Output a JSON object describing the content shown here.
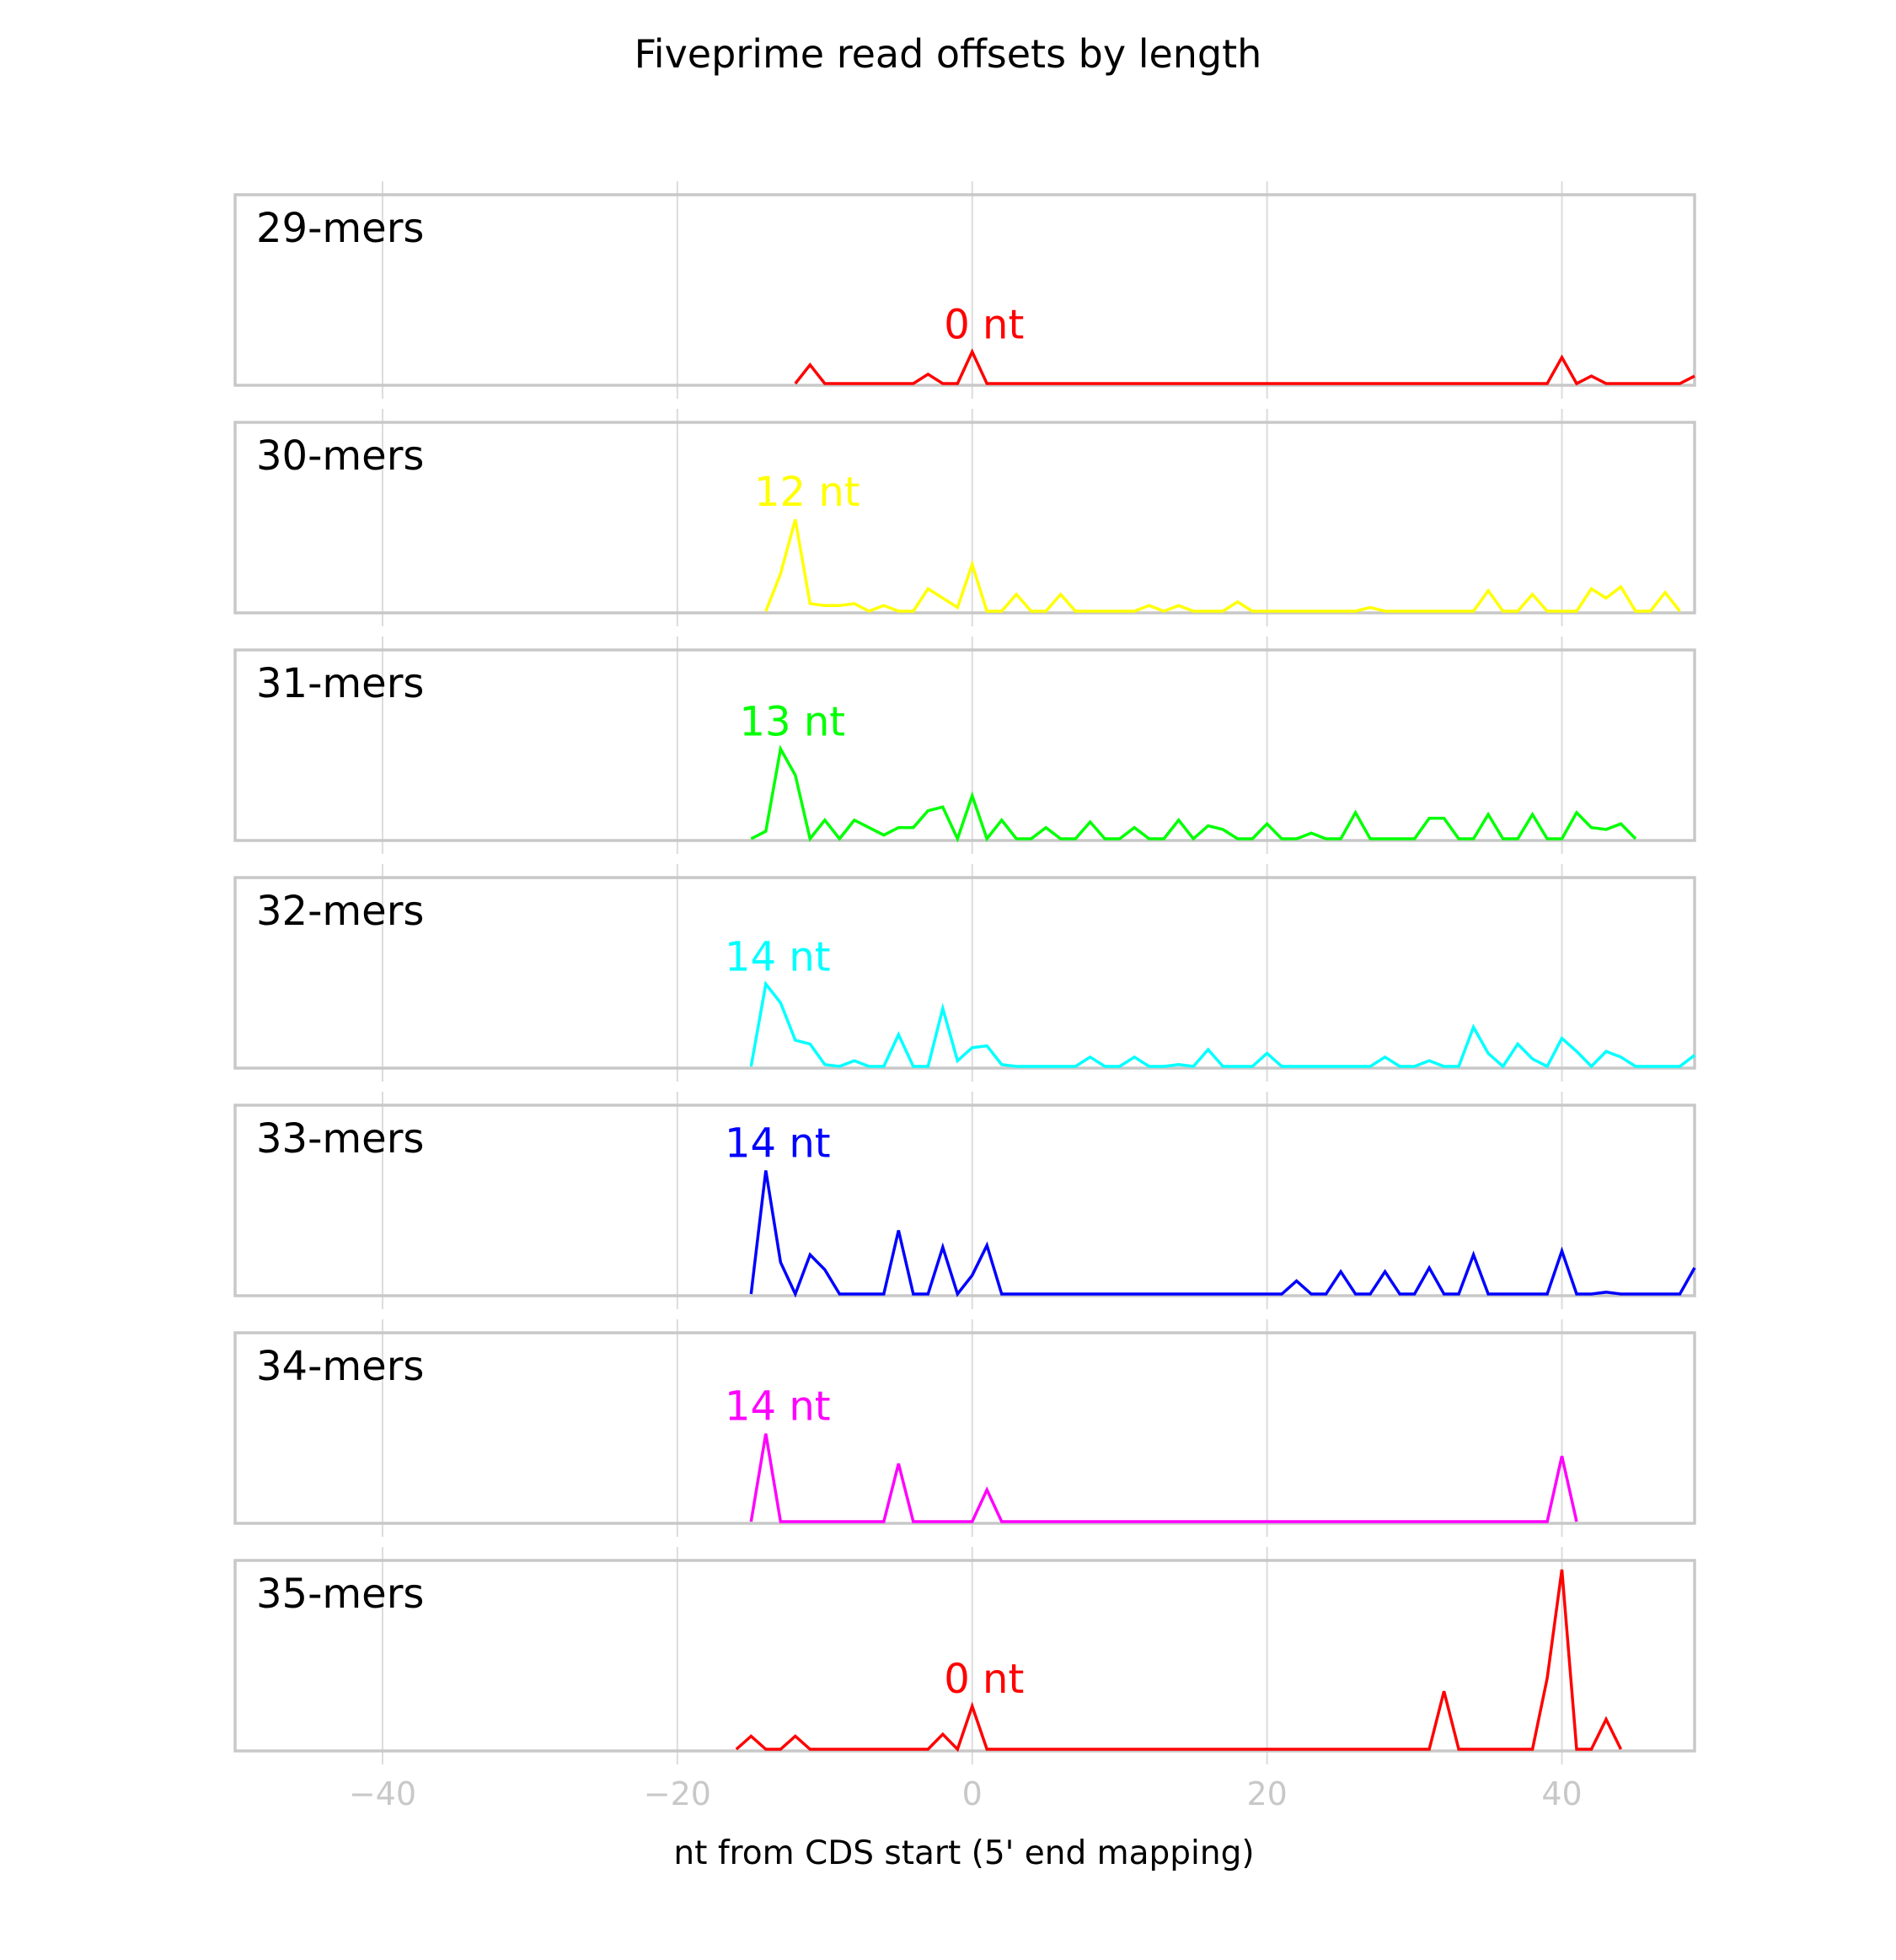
{
  "chart_data": {
    "type": "line",
    "title": "Fiveprime read offsets by length",
    "xlabel": "nt from CDS start (5' end mapping)",
    "ylabel": "",
    "xlim": [
      -50,
      49
    ],
    "xticks": [
      -40,
      -20,
      0,
      20,
      40
    ],
    "xtick_labels": [
      "−40",
      "−20",
      "0",
      "20",
      "40"
    ],
    "grid": true,
    "panels": [
      {
        "label": "29-mers",
        "color": "#ff0000",
        "peak_label": "0 nt",
        "peak_x": 0,
        "ymax": 1.0,
        "points": [
          [
            -12,
            0
          ],
          [
            -11,
            0.1
          ],
          [
            -10,
            0
          ],
          [
            -4,
            0
          ],
          [
            -3,
            0.05
          ],
          [
            -2,
            0
          ],
          [
            -1,
            0
          ],
          [
            0,
            0.17
          ],
          [
            1,
            0
          ],
          [
            39,
            0
          ],
          [
            40,
            0.14
          ],
          [
            41,
            0
          ],
          [
            42,
            0.04
          ],
          [
            43,
            0
          ],
          [
            48,
            0
          ],
          [
            49,
            0.04
          ]
        ]
      },
      {
        "label": "30-mers",
        "color": "#ffff00",
        "peak_label": "12 nt",
        "peak_x": -12,
        "ymax": 1.0,
        "points": [
          [
            -14,
            0
          ],
          [
            -13,
            0.2
          ],
          [
            -12,
            0.49
          ],
          [
            -11,
            0.04
          ],
          [
            -10,
            0.03
          ],
          [
            -9,
            0.03
          ],
          [
            -8,
            0.04
          ],
          [
            -7,
            0
          ],
          [
            -6,
            0.03
          ],
          [
            -5,
            0
          ],
          [
            -4,
            0
          ],
          [
            -3,
            0.12
          ],
          [
            -2,
            0.07
          ],
          [
            -1,
            0.02
          ],
          [
            0,
            0.25
          ],
          [
            1,
            0
          ],
          [
            2,
            0
          ],
          [
            3,
            0.09
          ],
          [
            4,
            0
          ],
          [
            5,
            0
          ],
          [
            6,
            0.09
          ],
          [
            7,
            0
          ],
          [
            11,
            0
          ],
          [
            12,
            0.03
          ],
          [
            13,
            0
          ],
          [
            14,
            0.03
          ],
          [
            15,
            0
          ],
          [
            17,
            0
          ],
          [
            18,
            0.05
          ],
          [
            19,
            0
          ],
          [
            26,
            0
          ],
          [
            27,
            0.02
          ],
          [
            28,
            0
          ],
          [
            34,
            0
          ],
          [
            35,
            0.11
          ],
          [
            36,
            0
          ],
          [
            37,
            0
          ],
          [
            38,
            0.09
          ],
          [
            39,
            0
          ],
          [
            40,
            0
          ],
          [
            41,
            0
          ],
          [
            42,
            0.12
          ],
          [
            43,
            0.07
          ],
          [
            44,
            0.13
          ],
          [
            45,
            0
          ],
          [
            46,
            0
          ],
          [
            47,
            0.1
          ],
          [
            48,
            0
          ]
        ]
      },
      {
        "label": "31-mers",
        "color": "#00ff00",
        "peak_label": "13 nt",
        "peak_x": -13,
        "ymax": 1.0,
        "points": [
          [
            -15,
            0
          ],
          [
            -14,
            0.04
          ],
          [
            -13,
            0.48
          ],
          [
            -12,
            0.34
          ],
          [
            -11,
            0
          ],
          [
            -10,
            0.1
          ],
          [
            -9,
            0
          ],
          [
            -8,
            0.1
          ],
          [
            -7,
            0.06
          ],
          [
            -6,
            0.02
          ],
          [
            -5,
            0.06
          ],
          [
            -4,
            0.06
          ],
          [
            -3,
            0.15
          ],
          [
            -2,
            0.17
          ],
          [
            -1,
            0
          ],
          [
            0,
            0.23
          ],
          [
            1,
            0
          ],
          [
            2,
            0.1
          ],
          [
            3,
            0
          ],
          [
            4,
            0
          ],
          [
            5,
            0.06
          ],
          [
            6,
            0
          ],
          [
            7,
            0
          ],
          [
            8,
            0.09
          ],
          [
            9,
            0
          ],
          [
            10,
            0
          ],
          [
            11,
            0.06
          ],
          [
            12,
            0
          ],
          [
            13,
            0
          ],
          [
            14,
            0.1
          ],
          [
            15,
            0
          ],
          [
            16,
            0.07
          ],
          [
            17,
            0.05
          ],
          [
            18,
            0
          ],
          [
            19,
            0
          ],
          [
            20,
            0.08
          ],
          [
            21,
            0
          ],
          [
            22,
            0
          ],
          [
            23,
            0.03
          ],
          [
            24,
            0
          ],
          [
            25,
            0
          ],
          [
            26,
            0.14
          ],
          [
            27,
            0
          ],
          [
            30,
            0
          ],
          [
            31,
            0.11
          ],
          [
            32,
            0.11
          ],
          [
            33,
            0
          ],
          [
            34,
            0
          ],
          [
            35,
            0.13
          ],
          [
            36,
            0
          ],
          [
            37,
            0
          ],
          [
            38,
            0.13
          ],
          [
            39,
            0
          ],
          [
            40,
            0
          ],
          [
            41,
            0.14
          ],
          [
            42,
            0.06
          ],
          [
            43,
            0.05
          ],
          [
            44,
            0.08
          ],
          [
            45,
            0
          ]
        ]
      },
      {
        "label": "32-mers",
        "color": "#00ffff",
        "peak_label": "14 nt",
        "peak_x": -14,
        "ymax": 1.0,
        "points": [
          [
            -15,
            0
          ],
          [
            -14,
            0.44
          ],
          [
            -13,
            0.34
          ],
          [
            -12,
            0.14
          ],
          [
            -11,
            0.12
          ],
          [
            -10,
            0.01
          ],
          [
            -9,
            0
          ],
          [
            -8,
            0.03
          ],
          [
            -7,
            0
          ],
          [
            -6,
            0
          ],
          [
            -5,
            0.17
          ],
          [
            -4,
            0
          ],
          [
            -3,
            0
          ],
          [
            -2,
            0.31
          ],
          [
            -1,
            0.03
          ],
          [
            0,
            0.1
          ],
          [
            1,
            0.11
          ],
          [
            2,
            0.01
          ],
          [
            3,
            0
          ],
          [
            7,
            0
          ],
          [
            8,
            0.05
          ],
          [
            9,
            0
          ],
          [
            10,
            0
          ],
          [
            11,
            0.05
          ],
          [
            12,
            0
          ],
          [
            13,
            0
          ],
          [
            14,
            0.01
          ],
          [
            15,
            0
          ],
          [
            16,
            0.09
          ],
          [
            17,
            0
          ],
          [
            19,
            0
          ],
          [
            20,
            0.07
          ],
          [
            21,
            0
          ],
          [
            27,
            0
          ],
          [
            28,
            0.05
          ],
          [
            29,
            0
          ],
          [
            30,
            0
          ],
          [
            31,
            0.03
          ],
          [
            32,
            0
          ],
          [
            33,
            0
          ],
          [
            34,
            0.21
          ],
          [
            35,
            0.07
          ],
          [
            36,
            0
          ],
          [
            37,
            0.12
          ],
          [
            38,
            0.04
          ],
          [
            39,
            0
          ],
          [
            40,
            0.15
          ],
          [
            41,
            0.08
          ],
          [
            42,
            0
          ],
          [
            43,
            0.08
          ],
          [
            44,
            0.05
          ],
          [
            45,
            0
          ],
          [
            48,
            0
          ],
          [
            49,
            0.06
          ]
        ]
      },
      {
        "label": "33-mers",
        "color": "#0000ff",
        "peak_label": "14 nt",
        "peak_x": -14,
        "ymax": 1.0,
        "points": [
          [
            -15,
            0
          ],
          [
            -14,
            0.66
          ],
          [
            -13,
            0.17
          ],
          [
            -12,
            0
          ],
          [
            -11,
            0.21
          ],
          [
            -10,
            0.13
          ],
          [
            -9,
            0
          ],
          [
            -6,
            0
          ],
          [
            -5,
            0.34
          ],
          [
            -4,
            0
          ],
          [
            -3,
            0
          ],
          [
            -2,
            0.25
          ],
          [
            -1,
            0
          ],
          [
            0,
            0.1
          ],
          [
            1,
            0.26
          ],
          [
            2,
            0
          ],
          [
            21,
            0
          ],
          [
            22,
            0.07
          ],
          [
            23,
            0
          ],
          [
            24,
            0
          ],
          [
            25,
            0.12
          ],
          [
            26,
            0
          ],
          [
            27,
            0
          ],
          [
            28,
            0.12
          ],
          [
            29,
            0
          ],
          [
            30,
            0
          ],
          [
            31,
            0.14
          ],
          [
            32,
            0
          ],
          [
            33,
            0
          ],
          [
            34,
            0.21
          ],
          [
            35,
            0
          ],
          [
            39,
            0
          ],
          [
            40,
            0.23
          ],
          [
            41,
            0
          ],
          [
            42,
            0
          ],
          [
            43,
            0.01
          ],
          [
            44,
            0
          ],
          [
            48,
            0
          ],
          [
            49,
            0.14
          ]
        ]
      },
      {
        "label": "34-mers",
        "color": "#ff00ff",
        "peak_label": "14 nt",
        "peak_x": -14,
        "ymax": 1.0,
        "points": [
          [
            -15,
            0
          ],
          [
            -14,
            0.47
          ],
          [
            -13,
            0
          ],
          [
            -6,
            0
          ],
          [
            -5,
            0.31
          ],
          [
            -4,
            0
          ],
          [
            0,
            0
          ],
          [
            1,
            0.17
          ],
          [
            2,
            0
          ],
          [
            39,
            0
          ],
          [
            40,
            0.35
          ],
          [
            41,
            0
          ]
        ]
      },
      {
        "label": "35-mers",
        "color": "#ff0000",
        "peak_label": "0 nt",
        "peak_x": 0,
        "ymax": 1.0,
        "points": [
          [
            -16,
            0
          ],
          [
            -15,
            0.07
          ],
          [
            -14,
            0
          ],
          [
            -13,
            0
          ],
          [
            -12,
            0.07
          ],
          [
            -11,
            0
          ],
          [
            -3,
            0
          ],
          [
            -2,
            0.08
          ],
          [
            -1,
            0
          ],
          [
            0,
            0.23
          ],
          [
            1,
            0
          ],
          [
            31,
            0
          ],
          [
            32,
            0.31
          ],
          [
            33,
            0
          ],
          [
            38,
            0
          ],
          [
            39,
            0.38
          ],
          [
            40,
            0.96
          ],
          [
            41,
            0
          ],
          [
            42,
            0
          ],
          [
            43,
            0.16
          ],
          [
            44,
            0
          ]
        ]
      }
    ]
  }
}
